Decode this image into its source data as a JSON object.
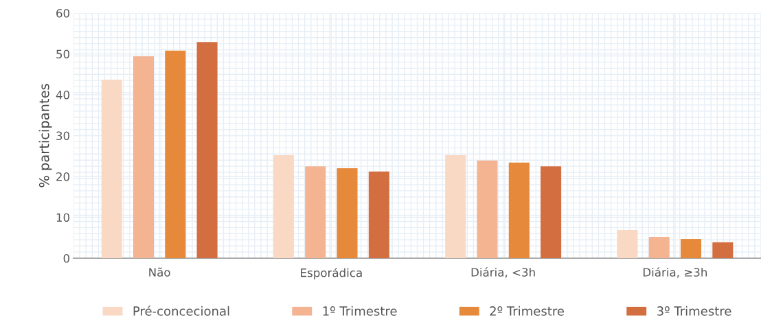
{
  "chart_data": {
    "type": "bar",
    "ylabel": "% participantes",
    "categories": [
      "Não",
      "Esporádica",
      "Diária, <3h",
      "Diária, ≥3h"
    ],
    "series": [
      {
        "name": "Pré-concecional",
        "color": "#f9d9c4",
        "values": [
          43.7,
          25.2,
          25.2,
          6.9
        ]
      },
      {
        "name": "1º Trimestre",
        "color": "#f4b391",
        "values": [
          49.4,
          22.5,
          23.9,
          5.2
        ]
      },
      {
        "name": "2º Trimestre",
        "color": "#e6893b",
        "values": [
          50.8,
          22.0,
          23.4,
          4.7
        ]
      },
      {
        "name": "3º Trimestre",
        "color": "#d36e41",
        "values": [
          52.9,
          21.2,
          22.5,
          3.9
        ]
      }
    ],
    "ylim": [
      0,
      60
    ],
    "yticks": [
      0,
      10,
      20,
      30,
      40,
      50,
      60
    ],
    "grid": true,
    "legend": "bottom"
  }
}
